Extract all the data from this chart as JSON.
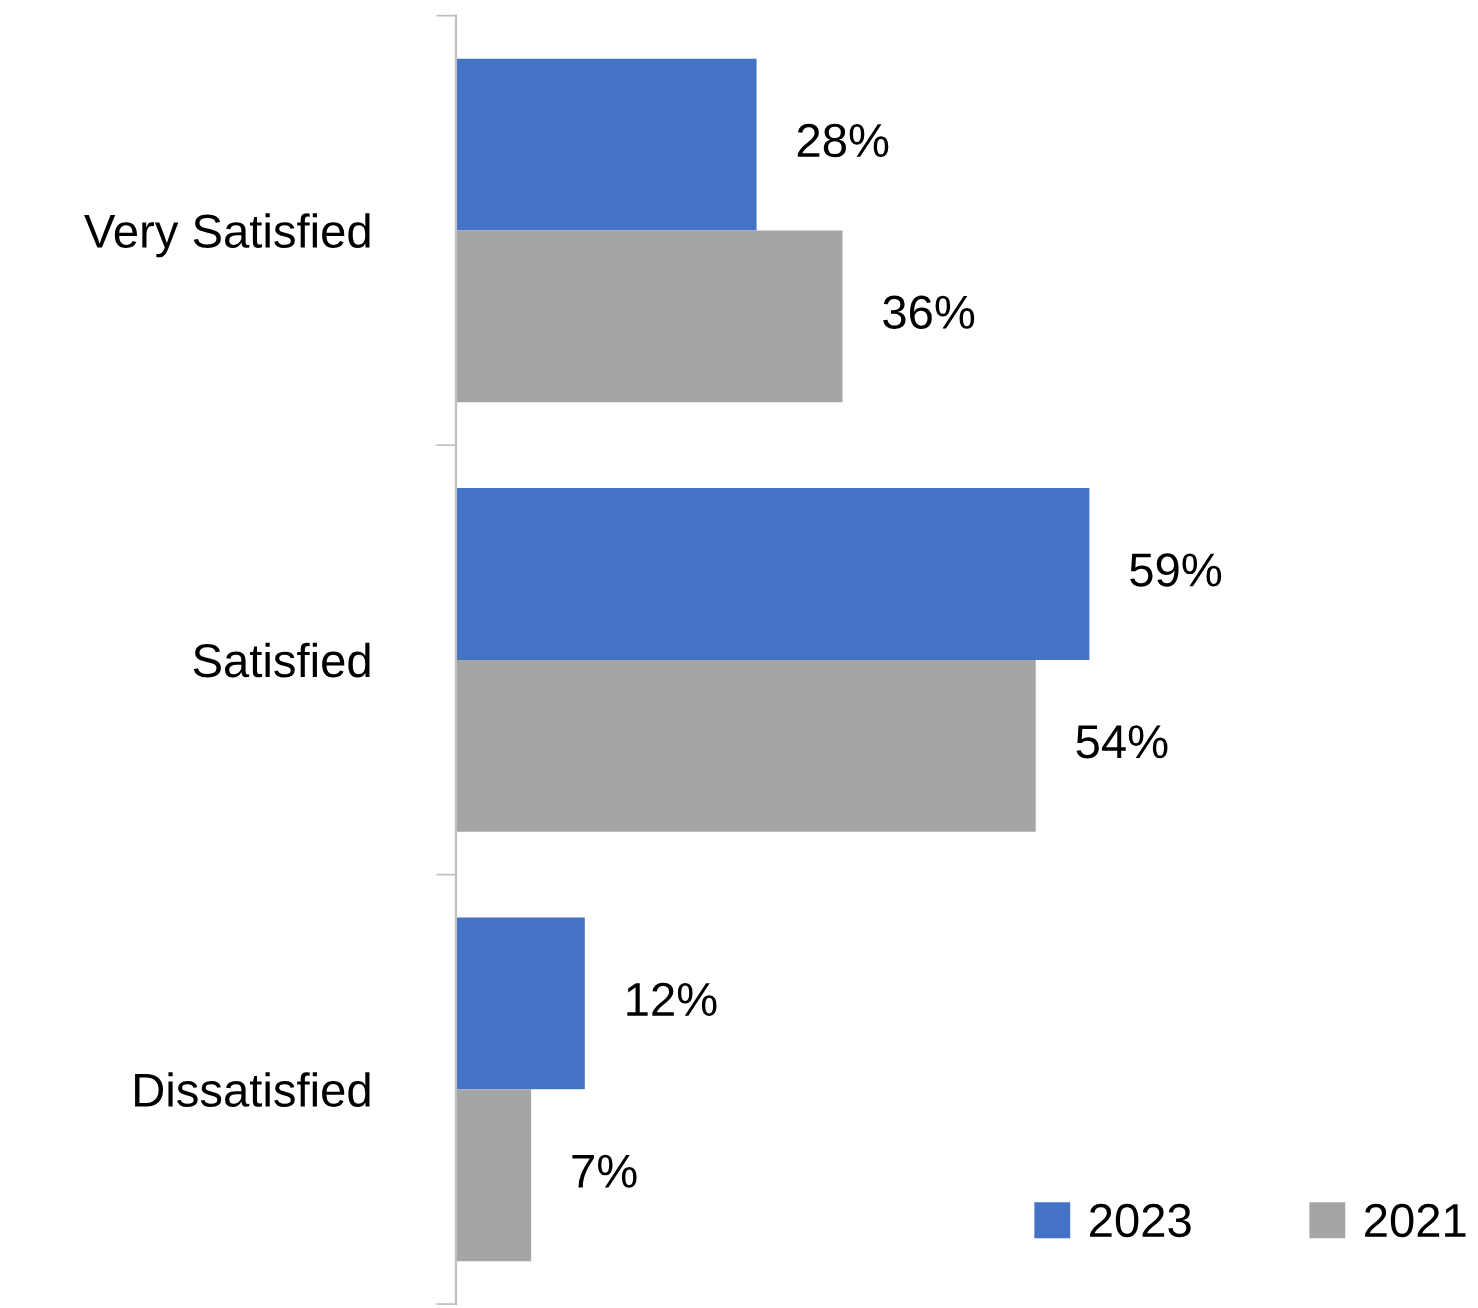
{
  "chart_data": {
    "type": "bar",
    "orientation": "horizontal",
    "categories": [
      "Very Satisfied",
      "Satisfied",
      "Dissatisfied"
    ],
    "series": [
      {
        "name": "2023",
        "color": "#4472c4",
        "values": [
          28,
          59,
          12
        ],
        "value_labels": [
          "28%",
          "59%",
          "12%"
        ]
      },
      {
        "name": "2021",
        "color": "#a5a5a5",
        "values": [
          36,
          54,
          7
        ],
        "value_labels": [
          "36%",
          "54%",
          "7%"
        ]
      }
    ],
    "legend": "bottom right"
  }
}
